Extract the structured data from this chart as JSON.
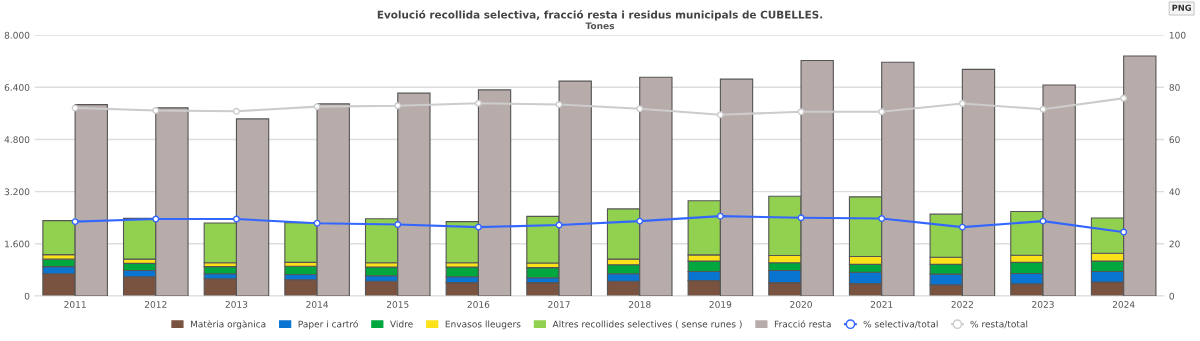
{
  "chart_data": [
    {
      "type": "bar",
      "title": "Evolució recollida selectiva, fracció resta i residus municipals de CUBELLES.",
      "subtitle": "Tones",
      "categories": [
        "2011",
        "2012",
        "2013",
        "2014",
        "2015",
        "2016",
        "2017",
        "2018",
        "2019",
        "2020",
        "2021",
        "2022",
        "2023",
        "2024"
      ],
      "stacked": true,
      "series": [
        {
          "name": "Matèria orgànica",
          "color": "#7a5240",
          "values": [
            680,
            590,
            530,
            500,
            450,
            410,
            410,
            450,
            470,
            410,
            380,
            340,
            370,
            430
          ]
        },
        {
          "name": "Paper i cartró",
          "color": "#0a74d1",
          "values": [
            220,
            190,
            150,
            160,
            170,
            180,
            150,
            230,
            280,
            370,
            350,
            330,
            320,
            320
          ]
        },
        {
          "name": "Vidre",
          "color": "#00a63e",
          "values": [
            230,
            220,
            220,
            250,
            270,
            300,
            310,
            280,
            320,
            240,
            240,
            300,
            340,
            320
          ]
        },
        {
          "name": "Envasos lleugers",
          "color": "#fde21a",
          "values": [
            140,
            130,
            120,
            120,
            130,
            130,
            140,
            170,
            190,
            220,
            240,
            220,
            220,
            240
          ]
        },
        {
          "name": "Altres recollides selectives ( sense runes )",
          "color": "#92d050",
          "values": [
            1040,
            1250,
            1220,
            1220,
            1350,
            1260,
            1430,
            1540,
            1660,
            1820,
            1830,
            1320,
            1340,
            1080
          ]
        },
        {
          "name": "% selectiva/total",
          "type": "line",
          "axis": "y2",
          "color": "#3366ff",
          "marker": "circle",
          "values": [
            28.5,
            29.5,
            29.5,
            27.9,
            27.4,
            26.4,
            27.2,
            28.7,
            30.6,
            30.0,
            29.7,
            26.4,
            28.7,
            24.5
          ]
        },
        {
          "name": "% resta/total",
          "type": "line",
          "axis": "y2",
          "color": "#cccccc",
          "marker": "circle",
          "values": [
            72.1,
            71.1,
            70.8,
            72.6,
            72.9,
            73.9,
            73.4,
            71.8,
            69.5,
            70.6,
            70.6,
            73.8,
            71.6,
            75.8
          ]
        }
      ],
      "ylim": [
        0,
        8000
      ],
      "yticks": [
        0,
        {
          "value": 1600,
          "label": "1.600"
        },
        {
          "value": 3200,
          "label": "3.200"
        },
        {
          "value": 4800,
          "label": "4.800"
        },
        {
          "value": 6400,
          "label": "6.400"
        },
        {
          "value": 8000,
          "label": "8.000"
        }
      ],
      "y2lim": [
        0,
        100
      ],
      "y2ticks": [
        0,
        20,
        40,
        60,
        80,
        100
      ],
      "grid": "y",
      "legend": "bottom",
      "annotations": [
        "PNG"
      ]
    },
    {
      "type": "bar",
      "categories": [
        "2011",
        "2012",
        "2013",
        "2014",
        "2015",
        "2016",
        "2017",
        "2018",
        "2019",
        "2020",
        "2021",
        "2022",
        "2023",
        "2024"
      ],
      "series": [
        {
          "name": "Fracció resta",
          "color": "#b8acab",
          "values": [
            5870,
            5770,
            5430,
            5890,
            6220,
            6320,
            6590,
            6710,
            6650,
            7220,
            7170,
            6950,
            6470,
            7360
          ]
        }
      ],
      "ylim": [
        0,
        8000
      ],
      "tick_labels": false,
      "legend": "bottom"
    }
  ]
}
